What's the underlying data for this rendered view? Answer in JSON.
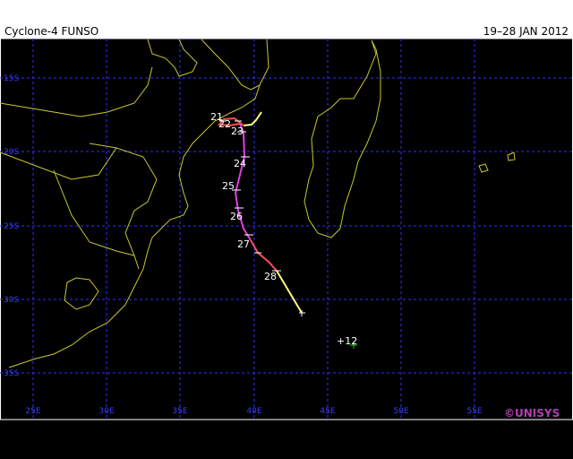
{
  "header": {
    "title": "Cyclone-4 FUNSO",
    "dates": "19–28 JAN 2012"
  },
  "grid": {
    "lat_labels": [
      "15S",
      "20S",
      "25S",
      "30S",
      "35S"
    ],
    "lon_labels": [
      "25E",
      "30E",
      "35E",
      "40E",
      "45E",
      "50E",
      "55E"
    ]
  },
  "track": {
    "labels": [
      "21",
      "22",
      "23",
      "24",
      "25",
      "26",
      "27",
      "28"
    ]
  },
  "forecast": {
    "label": "+12"
  },
  "credit": "©UNISYS"
}
